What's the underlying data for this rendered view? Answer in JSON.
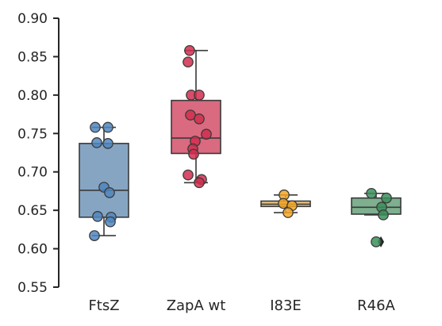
{
  "chart_data": {
    "type": "box",
    "title": "",
    "xlabel": "",
    "ylabel": "",
    "ylim": [
      0.55,
      0.9
    ],
    "yticks": [
      "0.55",
      "0.60",
      "0.65",
      "0.70",
      "0.75",
      "0.80",
      "0.85",
      "0.90"
    ],
    "grid": false,
    "categories": [
      "FtsZ",
      "ZapA wt",
      "I83E",
      "R46A"
    ],
    "series": [
      {
        "category": "FtsZ",
        "box_color": "#86a5c2",
        "point_color": "#4f86bf",
        "whisker_low": 0.617,
        "q1": 0.641,
        "median": 0.676,
        "q3": 0.737,
        "whisker_high": 0.758,
        "outliers": [],
        "points": [
          0.758,
          0.758,
          0.738,
          0.737,
          0.68,
          0.673,
          0.642,
          0.641,
          0.635,
          0.617
        ]
      },
      {
        "category": "ZapA wt",
        "box_color": "#d96a7f",
        "point_color": "#d12e4f",
        "whisker_low": 0.686,
        "q1": 0.724,
        "median": 0.744,
        "q3": 0.793,
        "whisker_high": 0.858,
        "outliers": [],
        "points": [
          0.858,
          0.843,
          0.8,
          0.8,
          0.774,
          0.769,
          0.749,
          0.74,
          0.73,
          0.723,
          0.696,
          0.69,
          0.686
        ]
      },
      {
        "category": "I83E",
        "box_color": "#ecc784",
        "point_color": "#f3a624",
        "whisker_low": 0.647,
        "q1": 0.655,
        "median": 0.658,
        "q3": 0.662,
        "whisker_high": 0.67,
        "outliers": [],
        "points": [
          0.67,
          0.659,
          0.656,
          0.647
        ]
      },
      {
        "category": "R46A",
        "box_color": "#7eaf8f",
        "point_color": "#3b8f5c",
        "whisker_low": 0.644,
        "q1": 0.645,
        "median": 0.654,
        "q3": 0.666,
        "whisker_high": 0.672,
        "outliers": [
          0.609
        ],
        "points": [
          0.672,
          0.666,
          0.654,
          0.644,
          0.609
        ]
      }
    ]
  }
}
